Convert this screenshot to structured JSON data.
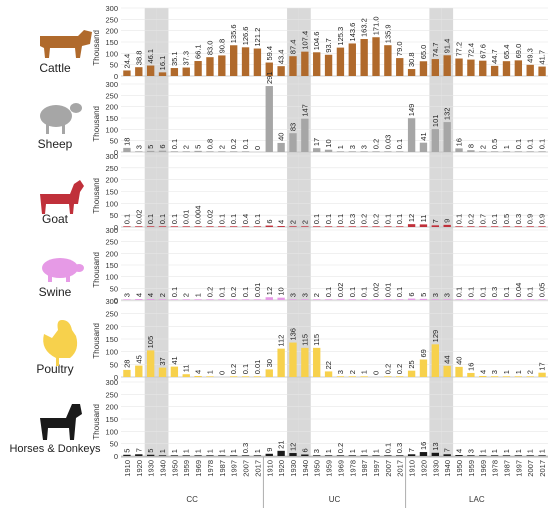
{
  "chart_data": {
    "type": "bar",
    "value_unit_label": "Thousand",
    "group_labels": [
      "CC",
      "UC",
      "LAC"
    ],
    "groups": [
      {
        "name": "CC",
        "years": [
          "1910",
          "1920",
          "1930",
          "1940",
          "1950",
          "1959",
          "1969",
          "1978",
          "1987",
          "1997",
          "2007",
          "2017"
        ]
      },
      {
        "name": "UC",
        "years": [
          "1910",
          "1920",
          "1930",
          "1940",
          "1950",
          "1959",
          "1969",
          "1978",
          "1987",
          "1997",
          "2007",
          "2017"
        ]
      },
      {
        "name": "LAC",
        "years": [
          "1910",
          "1920",
          "1930",
          "1940",
          "1950",
          "1959",
          "1969",
          "1978",
          "1987",
          "1997",
          "2007",
          "2017"
        ]
      }
    ],
    "highlighted_years": [
      "1930",
      "1940"
    ],
    "ylim": [
      0,
      300
    ],
    "yticks": [
      0,
      50,
      100,
      150,
      200,
      250,
      300
    ],
    "series": [
      {
        "name": "Cattle",
        "color": "#b06a2c",
        "icon": "cattle-icon",
        "labels": [
          [
            "24.4",
            "38.8",
            "46.1",
            "16.1",
            "35.1",
            "37.3",
            "66.1",
            "83.0",
            "90.8",
            "135.6",
            "126.6",
            "121.2"
          ],
          [
            "59.4",
            "43.4",
            "87.4",
            "107.4",
            "104.6",
            "93.7",
            "125.3",
            "143.6",
            "163.2",
            "171.0",
            "135.9",
            "79.0"
          ],
          [
            "30.8",
            "65.0",
            "74.7",
            "91.4",
            "77.2",
            "72.4",
            "67.6",
            "44.7",
            "65.4",
            "69.0",
            "49.3",
            "41.7"
          ]
        ],
        "values": [
          [
            24.4,
            38.8,
            46.1,
            16.1,
            35.1,
            37.3,
            66.1,
            83.0,
            90.8,
            135.6,
            126.6,
            121.2
          ],
          [
            59.4,
            43.4,
            87.4,
            107.4,
            104.6,
            93.7,
            125.3,
            143.6,
            163.2,
            171.0,
            135.9,
            79.0
          ],
          [
            30.8,
            65.0,
            74.7,
            91.4,
            77.2,
            72.4,
            67.6,
            44.7,
            65.4,
            69.0,
            49.3,
            41.7
          ]
        ]
      },
      {
        "name": "Sheep",
        "color": "#a6a6a6",
        "icon": "sheep-icon",
        "labels": [
          [
            "18",
            "3",
            "5",
            "6",
            "0.1",
            "2",
            "5",
            "0.8",
            "2",
            "0.2",
            "0.1",
            "0"
          ],
          [
            "291",
            "40",
            "83",
            "147",
            "17",
            "10",
            "1",
            "3",
            "3",
            "0.2",
            "0.03",
            "0.1"
          ],
          [
            "149",
            "41",
            "101",
            "132",
            "16",
            "8",
            "2",
            "0.5",
            "1",
            "0.1",
            "0.1",
            "0.1"
          ]
        ],
        "values": [
          [
            18,
            3,
            5,
            6,
            0.1,
            2,
            5,
            0.8,
            2,
            0.2,
            0.1,
            0
          ],
          [
            291,
            40,
            83,
            147,
            17,
            10,
            1,
            3,
            3,
            0.2,
            0.03,
            0.1
          ],
          [
            149,
            41,
            101,
            132,
            16,
            8,
            2,
            0.5,
            1,
            0.1,
            0.1,
            0.1
          ]
        ]
      },
      {
        "name": "Goat",
        "color": "#c0303a",
        "icon": "goat-icon",
        "labels": [
          [
            "0.1",
            "0.02",
            "0.1",
            "0.1",
            "0.1",
            "0.01",
            "0.004",
            "0.02",
            "0.1",
            "0.1",
            "0.4",
            "0.1"
          ],
          [
            "6",
            "4",
            "2",
            "2",
            "0.1",
            "0.1",
            "0.1",
            "0.3",
            "0.2",
            "0.2",
            "0.1",
            "0.1"
          ],
          [
            "12",
            "11",
            "7",
            "9",
            "0.1",
            "0.2",
            "0.7",
            "0.1",
            "0.5",
            "0.3",
            "0.9",
            "0.9"
          ]
        ],
        "values": [
          [
            0.1,
            0.02,
            0.1,
            0.1,
            0.1,
            0.01,
            0.004,
            0.02,
            0.1,
            0.1,
            0.4,
            0.1
          ],
          [
            6,
            4,
            2,
            2,
            0.1,
            0.1,
            0.1,
            0.3,
            0.2,
            0.2,
            0.1,
            0.1
          ],
          [
            12,
            11,
            7,
            9,
            0.1,
            0.2,
            0.7,
            0.1,
            0.5,
            0.3,
            0.9,
            0.9
          ]
        ]
      },
      {
        "name": "Swine",
        "color": "#e69ae6",
        "icon": "swine-icon",
        "labels": [
          [
            "3",
            "4",
            "4",
            "2",
            "0.1",
            "2",
            "1",
            "0.2",
            "0.1",
            "0.2",
            "0.1",
            "0.01"
          ],
          [
            "12",
            "10",
            "3",
            "3",
            "2",
            "0.1",
            "0.02",
            "0.1",
            "0.1",
            "0.02",
            "0.01",
            "0.1"
          ],
          [
            "6",
            "5",
            "3",
            "3",
            "0.1",
            "0.1",
            "0.1",
            "0.3",
            "0.1",
            "0.04",
            "0.1",
            "0.05"
          ]
        ],
        "values": [
          [
            3,
            4,
            4,
            2,
            0.1,
            2,
            1,
            0.2,
            0.1,
            0.2,
            0.1,
            0.01
          ],
          [
            12,
            10,
            3,
            3,
            2,
            0.1,
            0.02,
            0.1,
            0.1,
            0.02,
            0.01,
            0.1
          ],
          [
            6,
            5,
            3,
            3,
            0.1,
            0.1,
            0.1,
            0.3,
            0.1,
            0.04,
            0.1,
            0.05
          ]
        ]
      },
      {
        "name": "Poultry",
        "color": "#f7d14c",
        "icon": "poultry-icon",
        "labels": [
          [
            "28",
            "45",
            "105",
            "37",
            "41",
            "11",
            "4",
            "1",
            "0",
            "0.2",
            "0.1",
            "0.01"
          ],
          [
            "30",
            "112",
            "136",
            "115",
            "115",
            "22",
            "3",
            "2",
            "1",
            "0",
            "0.2",
            "0.2"
          ],
          [
            "25",
            "69",
            "129",
            "44",
            "40",
            "16",
            "4",
            "3",
            "1",
            "1",
            "2",
            "17"
          ]
        ],
        "values": [
          [
            28,
            45,
            105,
            37,
            41,
            11,
            4,
            1,
            0,
            0.2,
            0.1,
            0.01
          ],
          [
            30,
            112,
            136,
            115,
            115,
            22,
            3,
            2,
            1,
            0,
            0.2,
            0.2
          ],
          [
            25,
            69,
            129,
            44,
            40,
            16,
            4,
            3,
            1,
            1,
            2,
            17
          ]
        ]
      },
      {
        "name": "Horses & Donkeys",
        "color": "#1a1a1a",
        "icon": "horse-icon",
        "labels": [
          [
            "5",
            "7",
            "5",
            "1",
            "1",
            "1",
            "1",
            "1",
            "1",
            "1",
            "0.3",
            "1"
          ],
          [
            "9",
            "21",
            "12",
            "6",
            "3",
            "1",
            "0.2",
            "1",
            "1",
            "1",
            "0.1",
            "0.3"
          ],
          [
            "7",
            "16",
            "13",
            "7",
            "4",
            "3",
            "1",
            "1",
            "1",
            "1",
            "1",
            "1"
          ]
        ],
        "values": [
          [
            5,
            7,
            5,
            1,
            1,
            1,
            1,
            1,
            1,
            1,
            0.3,
            1
          ],
          [
            9,
            21,
            12,
            6,
            3,
            1,
            0.2,
            1,
            1,
            1,
            0.1,
            0.3
          ],
          [
            7,
            16,
            13,
            7,
            4,
            3,
            1,
            1,
            1,
            1,
            1,
            1
          ]
        ]
      }
    ]
  }
}
